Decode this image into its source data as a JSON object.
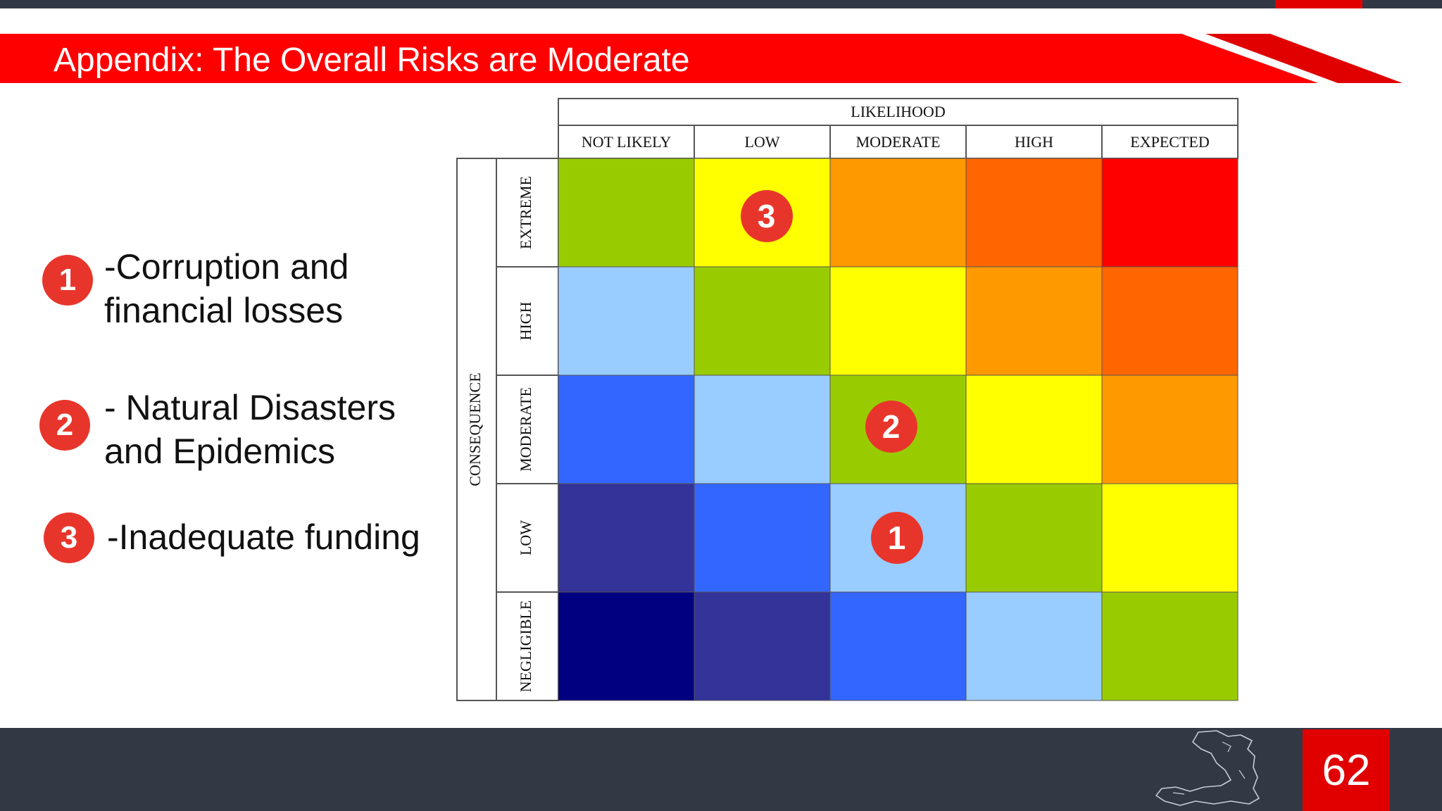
{
  "slide": {
    "title": "Appendix: The Overall Risks are Moderate",
    "page_number": "62",
    "colors": {
      "accent_red": "#e00000",
      "badge_red": "#e8352b",
      "dark_bar": "#333845"
    }
  },
  "legend": [
    {
      "badge": "1",
      "line1": "-Corruption and",
      "line2": "financial losses"
    },
    {
      "badge": "2",
      "line1": "- Natural Disasters",
      "line2": "and  Epidemics"
    },
    {
      "badge": "3",
      "line1": "-Inadequate funding",
      "line2": ""
    }
  ],
  "matrix": {
    "likelihood_label": "LIKELIHOOD",
    "consequence_label": "CONSEQUENCE",
    "likelihood_levels": [
      "NOT LIKELY",
      "LOW",
      "MODERATE",
      "HIGH",
      "EXPECTED"
    ],
    "consequence_levels": [
      "EXTREME",
      "HIGH",
      "MODERATE",
      "LOW",
      "NEGLIGIBLE"
    ],
    "cell_colors": [
      [
        "#99cc00",
        "#ffff00",
        "#ff9900",
        "#ff6600",
        "#ff0000"
      ],
      [
        "#99ccff",
        "#99cc00",
        "#ffff00",
        "#ff9900",
        "#ff6600"
      ],
      [
        "#3366ff",
        "#99ccff",
        "#99cc00",
        "#ffff00",
        "#ff9900"
      ],
      [
        "#333399",
        "#3366ff",
        "#99ccff",
        "#99cc00",
        "#ffff00"
      ],
      [
        "#000080",
        "#333399",
        "#3366ff",
        "#99ccff",
        "#99cc00"
      ]
    ],
    "markers": [
      {
        "label": "3",
        "consequence": "EXTREME",
        "likelihood": "LOW"
      },
      {
        "label": "2",
        "consequence": "MODERATE",
        "likelihood": "MODERATE"
      },
      {
        "label": "1",
        "consequence": "LOW",
        "likelihood": "MODERATE"
      }
    ]
  }
}
